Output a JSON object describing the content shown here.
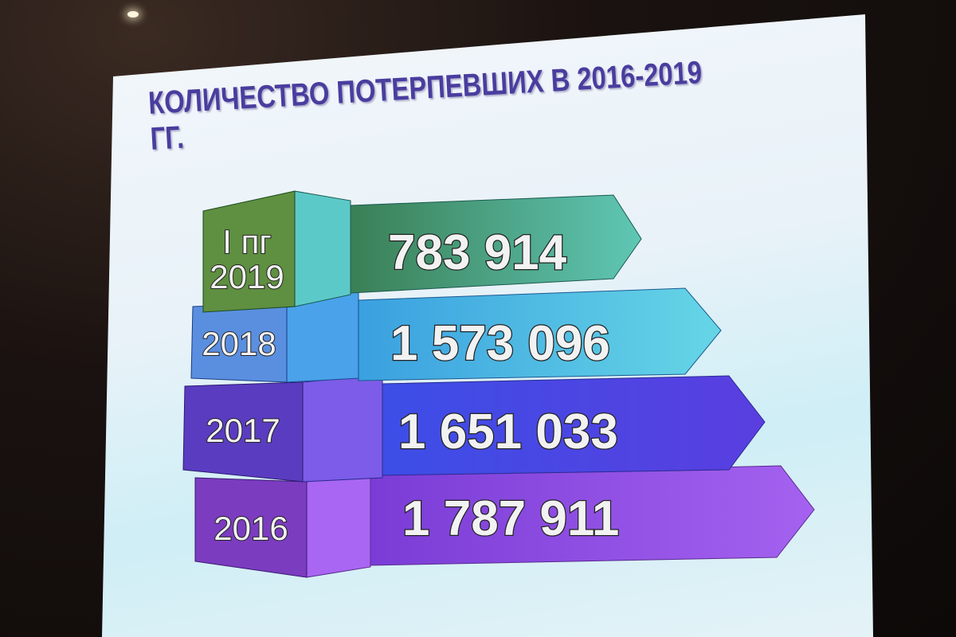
{
  "slide": {
    "title": "КОЛИЧЕСТВО ПОТЕРПЕВШИХ В 2016-2019 ГГ.",
    "rows": [
      {
        "year_line1": "I пг",
        "year_line2": "2019",
        "value": "783 914",
        "color": "#3f8f6e"
      },
      {
        "year_line1": "",
        "year_line2": "2018",
        "value": "1 573 096",
        "color": "#40b0e0"
      },
      {
        "year_line1": "",
        "year_line2": "2017",
        "value": "1 651 033",
        "color": "#4a4ae8"
      },
      {
        "year_line1": "",
        "year_line2": "2016",
        "value": "1 787 911",
        "color": "#8a4ae0"
      }
    ]
  }
}
